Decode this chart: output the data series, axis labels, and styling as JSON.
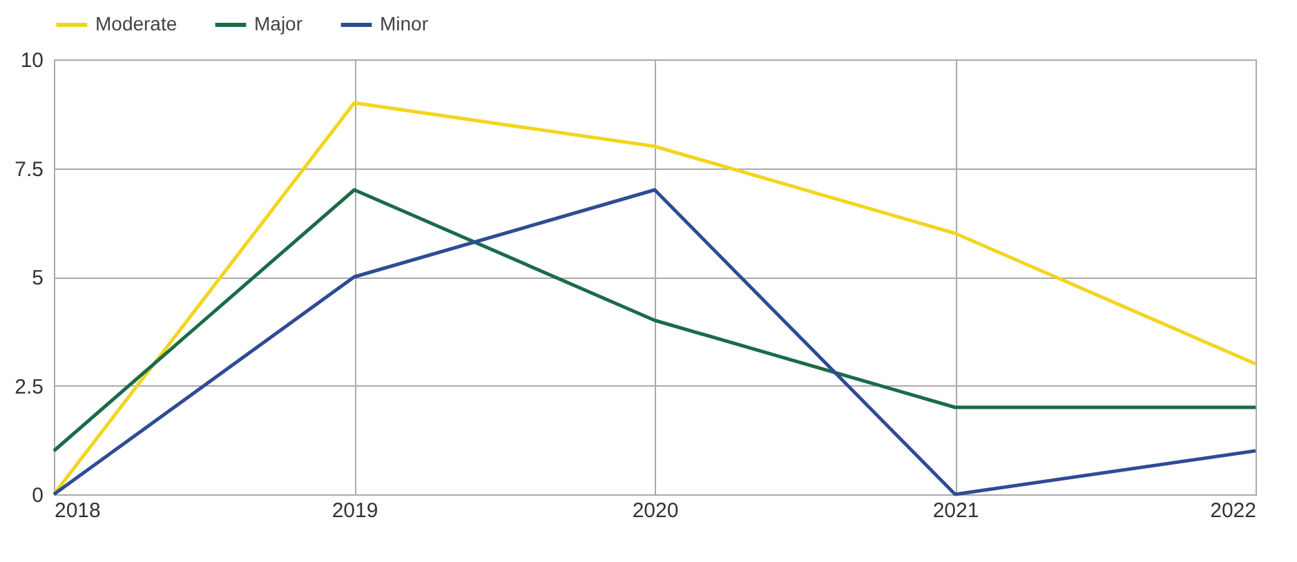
{
  "chart_data": {
    "type": "line",
    "x": [
      2018,
      2019,
      2020,
      2021,
      2022
    ],
    "series": [
      {
        "name": "Moderate",
        "color": "#f2d51e",
        "values": [
          0,
          9,
          8,
          6,
          3
        ]
      },
      {
        "name": "Major",
        "color": "#1b6b47",
        "values": [
          1,
          7,
          4,
          2,
          2
        ]
      },
      {
        "name": "Minor",
        "color": "#2e4c94",
        "values": [
          0,
          5,
          7,
          0,
          1
        ]
      }
    ],
    "xlim": [
      2018,
      2022
    ],
    "xticks": [
      2018,
      2019,
      2020,
      2021,
      2022
    ],
    "ylim": [
      0,
      10
    ],
    "yticks": [
      0,
      2.5,
      5,
      7.5,
      10
    ],
    "grid": true,
    "legend": "top",
    "marker": "none",
    "line_style": "solid"
  }
}
